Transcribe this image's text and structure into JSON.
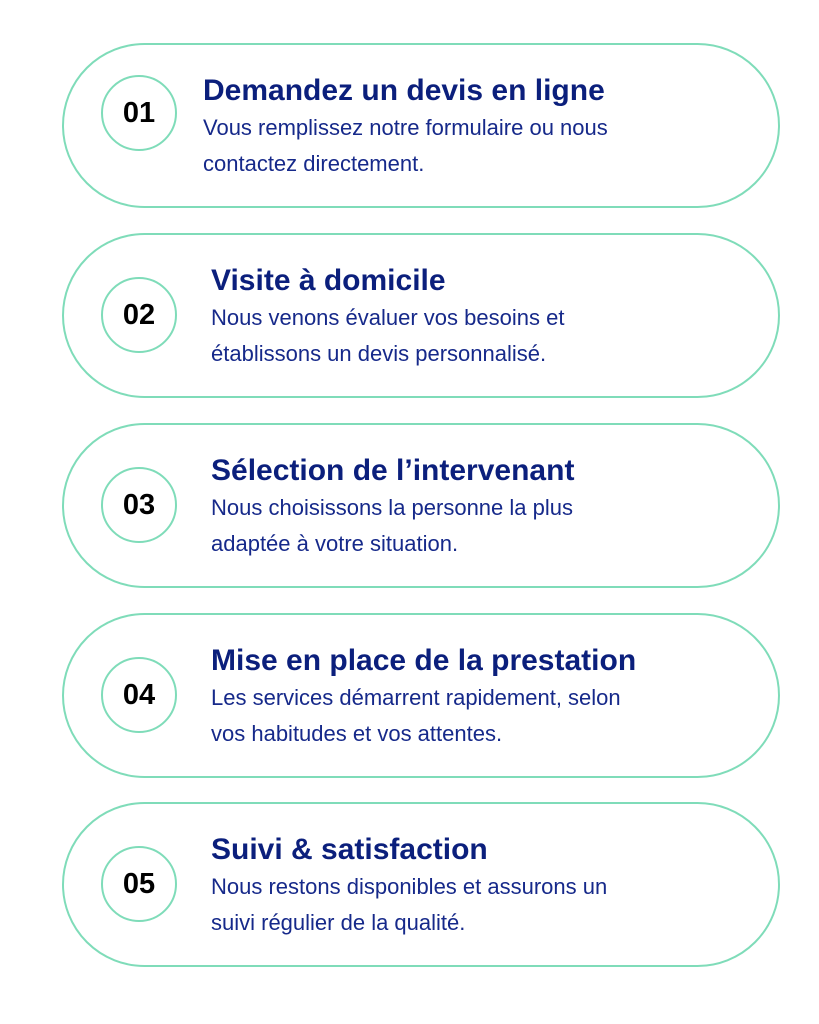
{
  "accent_color": "#7fdcb9",
  "title_color": "#0b1f7c",
  "steps": [
    {
      "number": "01",
      "title": "Demandez un devis en ligne",
      "line1": "Vous remplissez notre formulaire ou nous",
      "line2": "contactez directement."
    },
    {
      "number": "02",
      "title": "Visite à domicile",
      "line1": "Nous venons évaluer vos besoins et",
      "line2": "établissons un devis personnalisé."
    },
    {
      "number": "03",
      "title": "Sélection de l’intervenant",
      "line1": "Nous choisissons la personne la plus",
      "line2": "adaptée à votre situation."
    },
    {
      "number": "04",
      "title": "Mise en place de la prestation",
      "line1": "Les services démarrent rapidement, selon",
      "line2": "vos habitudes et vos attentes."
    },
    {
      "number": "05",
      "title": "Suivi & satisfaction",
      "line1": "Nous restons disponibles et assurons un",
      "line2": "suivi régulier de la qualité."
    }
  ]
}
